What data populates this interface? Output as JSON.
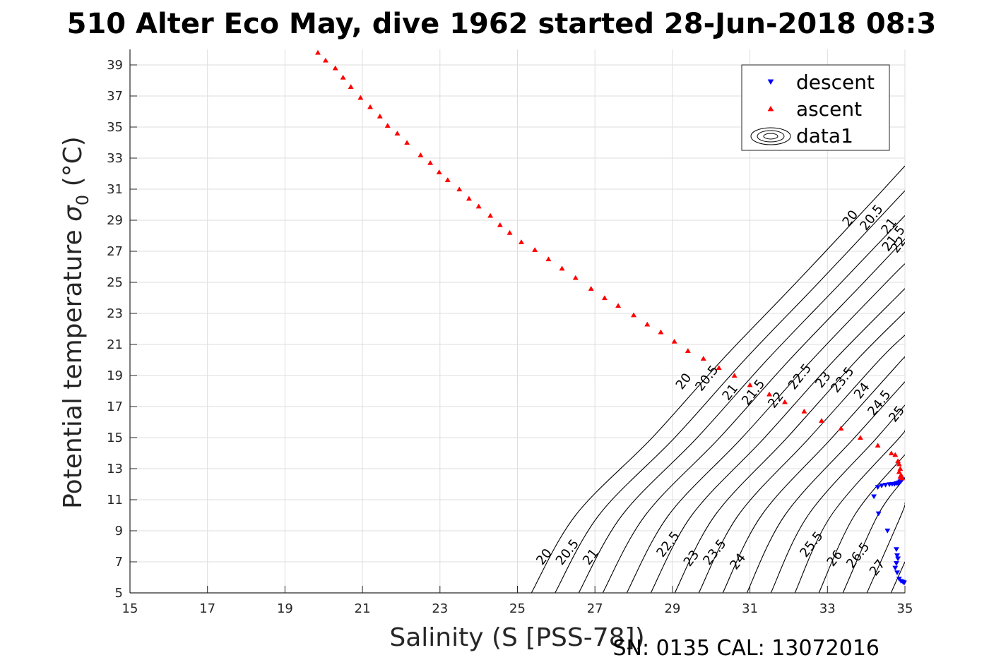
{
  "chart_data": {
    "type": "scatter",
    "title": "510 Alter Eco May, dive 1962 started 28-Jun-2018 08:3",
    "xlabel": "Salinity (S [PSS-78])",
    "ylabel_prefix": "Potential temperature ",
    "ylabel_sigma": "σ",
    "ylabel_sub": "0",
    "ylabel_suffix": " (°C)",
    "footer": "SN: 0135  CAL: 13072016",
    "xlim": [
      15,
      35
    ],
    "ylim": [
      5,
      40
    ],
    "xticks": [
      15,
      17,
      19,
      21,
      23,
      25,
      27,
      29,
      31,
      33,
      35
    ],
    "yticks": [
      5,
      7,
      9,
      11,
      13,
      15,
      17,
      19,
      21,
      23,
      25,
      27,
      29,
      31,
      33,
      35,
      37,
      39
    ],
    "grid": true,
    "legend": {
      "position": "top-right",
      "entries": [
        {
          "name": "descent",
          "color": "#0000ff",
          "marker": "triangle-down"
        },
        {
          "name": "ascent",
          "color": "#ff0000",
          "marker": "triangle-up"
        },
        {
          "name": "data1",
          "color": "#000000",
          "marker": "contour"
        }
      ]
    },
    "series": [
      {
        "name": "descent",
        "color": "#0000ff",
        "marker": "triangle-down",
        "x": [
          34.93,
          34.9,
          34.88,
          34.85,
          34.82,
          34.78,
          34.73,
          34.67,
          34.6,
          34.5,
          34.4,
          34.3,
          34.2,
          34.32,
          34.55,
          34.78,
          34.8,
          34.82,
          34.78,
          34.75,
          34.8,
          34.85,
          34.9,
          34.95,
          34.98
        ],
        "y": [
          12.3,
          12.2,
          12.15,
          12.1,
          12.05,
          12.05,
          12.0,
          12.0,
          11.98,
          11.95,
          11.9,
          11.8,
          11.2,
          10.1,
          9.0,
          7.8,
          7.4,
          7.2,
          6.9,
          6.6,
          6.3,
          5.9,
          5.75,
          5.7,
          5.65
        ]
      },
      {
        "name": "ascent",
        "color": "#ff0000",
        "marker": "triangle-up",
        "x": [
          19.85,
          20.05,
          20.3,
          20.5,
          20.7,
          20.95,
          21.2,
          21.45,
          21.65,
          21.9,
          22.15,
          22.5,
          22.75,
          22.98,
          23.2,
          23.5,
          23.75,
          24.0,
          24.3,
          24.55,
          24.8,
          25.1,
          25.45,
          25.8,
          26.15,
          26.5,
          26.9,
          27.25,
          27.6,
          28.0,
          28.35,
          28.7,
          29.05,
          29.4,
          29.8,
          30.2,
          30.6,
          31.0,
          31.5,
          31.9,
          32.4,
          32.85,
          33.35,
          33.85,
          34.3,
          34.65,
          34.75,
          34.82,
          34.85,
          34.88,
          34.85,
          34.9,
          34.88,
          34.93
        ],
        "y": [
          39.8,
          39.3,
          38.8,
          38.2,
          37.6,
          36.9,
          36.3,
          35.7,
          35.1,
          34.6,
          34.0,
          33.2,
          32.7,
          32.1,
          31.6,
          31.0,
          30.4,
          29.9,
          29.3,
          28.7,
          28.2,
          27.6,
          27.1,
          26.5,
          25.9,
          25.3,
          24.6,
          24.0,
          23.5,
          22.9,
          22.3,
          21.8,
          21.2,
          20.6,
          20.1,
          19.5,
          19.0,
          18.4,
          17.8,
          17.3,
          16.7,
          16.1,
          15.6,
          15.0,
          14.5,
          14.0,
          13.9,
          13.5,
          13.3,
          13.0,
          12.8,
          12.6,
          12.5,
          12.4
        ]
      }
    ],
    "contours": [
      {
        "label": "20",
        "points": [
          [
            25.36,
            5
          ],
          [
            26.5,
            10
          ],
          [
            28.48,
            15
          ],
          [
            30.28,
            20
          ],
          [
            32.2,
            25
          ],
          [
            34.08,
            30
          ],
          [
            35,
            32.5
          ]
        ],
        "label_positions": [
          [
            25.7,
            7.3
          ],
          [
            29.3,
            18.6
          ],
          [
            33.6,
            29.1
          ]
        ]
      },
      {
        "label": "20.5",
        "points": [
          [
            25.97,
            5
          ],
          [
            27.1,
            10
          ],
          [
            29.06,
            15
          ],
          [
            30.86,
            20
          ],
          [
            32.78,
            25
          ],
          [
            34.66,
            30
          ],
          [
            35,
            30.9
          ]
        ],
        "label_positions": [
          [
            26.3,
            7.6
          ],
          [
            29.9,
            18.8
          ],
          [
            34.15,
            29.15
          ]
        ]
      },
      {
        "label": "21",
        "points": [
          [
            26.58,
            5
          ],
          [
            27.7,
            10
          ],
          [
            29.64,
            15
          ],
          [
            31.44,
            20
          ],
          [
            33.36,
            25
          ],
          [
            35,
            29.3
          ]
        ],
        "label_positions": [
          [
            26.9,
            7.3
          ],
          [
            30.5,
            17.9
          ],
          [
            34.6,
            28.6
          ]
        ]
      },
      {
        "label": "21.5",
        "points": [
          [
            27.2,
            5
          ],
          [
            28.3,
            10
          ],
          [
            30.22,
            15
          ],
          [
            32.02,
            20
          ],
          [
            33.94,
            25
          ],
          [
            35,
            27.8
          ]
        ],
        "label_positions": [
          [
            31.1,
            17.9
          ],
          [
            34.72,
            27.8
          ]
        ]
      },
      {
        "label": "22",
        "points": [
          [
            27.82,
            5
          ],
          [
            28.9,
            10
          ],
          [
            30.8,
            15
          ],
          [
            32.6,
            20
          ],
          [
            34.52,
            25
          ],
          [
            35,
            26.2
          ]
        ],
        "label_positions": [
          [
            31.68,
            17.4
          ],
          [
            34.85,
            27.4
          ]
        ]
      },
      {
        "label": "22.5",
        "points": [
          [
            28.44,
            5
          ],
          [
            29.5,
            10
          ],
          [
            31.38,
            15
          ],
          [
            33.18,
            20
          ],
          [
            35,
            24.6
          ]
        ],
        "label_positions": [
          [
            28.9,
            8.1
          ],
          [
            32.3,
            18.9
          ]
        ]
      },
      {
        "label": "23",
        "points": [
          [
            29.06,
            5
          ],
          [
            30.1,
            10
          ],
          [
            31.96,
            15
          ],
          [
            33.76,
            20
          ],
          [
            35,
            23.1
          ]
        ],
        "label_positions": [
          [
            29.5,
            7.2
          ],
          [
            32.9,
            18.7
          ]
        ]
      },
      {
        "label": "23.5",
        "points": [
          [
            29.68,
            5
          ],
          [
            30.7,
            10
          ],
          [
            32.54,
            15
          ],
          [
            34.34,
            20
          ],
          [
            35,
            21.6
          ]
        ],
        "label_positions": [
          [
            30.1,
            7.6
          ],
          [
            33.4,
            18.7
          ]
        ]
      },
      {
        "label": "24",
        "points": [
          [
            30.3,
            5
          ],
          [
            31.3,
            10
          ],
          [
            33.12,
            15
          ],
          [
            34.92,
            20
          ],
          [
            35,
            20.1
          ]
        ],
        "label_positions": [
          [
            30.7,
            7.0
          ],
          [
            33.9,
            18.0
          ]
        ]
      },
      {
        "label": "24.5",
        "points": [
          [
            30.92,
            5
          ],
          [
            31.9,
            10
          ],
          [
            33.7,
            15
          ],
          [
            35,
            18.6
          ]
        ],
        "label_positions": [
          [
            34.35,
            17.2
          ]
        ]
      },
      {
        "label": "25",
        "points": [
          [
            31.54,
            5
          ],
          [
            32.5,
            10
          ],
          [
            34.28,
            15
          ],
          [
            35,
            17.1
          ]
        ],
        "label_positions": [
          [
            34.8,
            16.5
          ]
        ]
      },
      {
        "label": "25.5",
        "points": [
          [
            32.16,
            5
          ],
          [
            33.1,
            10
          ],
          [
            34.86,
            15
          ],
          [
            35,
            15.5
          ]
        ],
        "label_positions": [
          [
            32.6,
            8.1
          ]
        ]
      },
      {
        "label": "26",
        "points": [
          [
            32.78,
            5
          ],
          [
            33.7,
            10
          ],
          [
            35,
            13.9
          ]
        ],
        "label_positions": [
          [
            33.2,
            7.2
          ]
        ]
      },
      {
        "label": "26.5",
        "points": [
          [
            33.4,
            5
          ],
          [
            34.3,
            10
          ],
          [
            35,
            12.4
          ]
        ],
        "label_positions": [
          [
            33.8,
            7.4
          ]
        ]
      },
      {
        "label": "27",
        "points": [
          [
            34.02,
            5
          ],
          [
            34.9,
            10
          ],
          [
            35,
            10.8
          ]
        ],
        "label_positions": [
          [
            34.3,
            6.6
          ]
        ]
      },
      {
        "label": "",
        "points": [
          [
            34.64,
            5
          ],
          [
            35,
            7.0
          ]
        ],
        "label_positions": []
      }
    ]
  }
}
